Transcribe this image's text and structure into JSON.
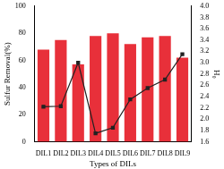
{
  "chart_data": {
    "type": "bar",
    "x_label": "Types of DILs",
    "y_label": "Sulfur Removal(%)",
    "y2_label": "H₀",
    "categories": [
      "DIL1",
      "DIL2",
      "DIL3",
      "DIL4",
      "DIL5",
      "DIL6",
      "DIL7",
      "DIL8",
      "DIL9"
    ],
    "series": [
      {
        "type": "bar",
        "color": "#e8303a",
        "values": [
          68,
          75,
          57,
          78,
          80,
          72,
          77,
          78,
          62
        ]
      },
      {
        "type": "line",
        "axis": "y2",
        "color": "#222222",
        "marker": "square",
        "values": [
          2.22,
          2.23,
          3.0,
          1.75,
          1.85,
          2.35,
          2.55,
          2.7,
          3.15
        ]
      }
    ],
    "ylim": [
      0,
      100
    ],
    "yticks": [
      0,
      20,
      40,
      60,
      80,
      100
    ],
    "y2lim": [
      1.6,
      4.0
    ],
    "y2ticks": [
      1.6,
      1.8,
      {
        "value": 2.0,
        "label": "2.0"
      },
      2.2,
      2.4,
      2.6,
      2.8,
      {
        "value": 3.0,
        "label": "3.0"
      },
      3.2,
      3.4,
      3.6,
      3.8,
      {
        "value": 4.0,
        "label": "4.0"
      }
    ],
    "grid": false
  }
}
